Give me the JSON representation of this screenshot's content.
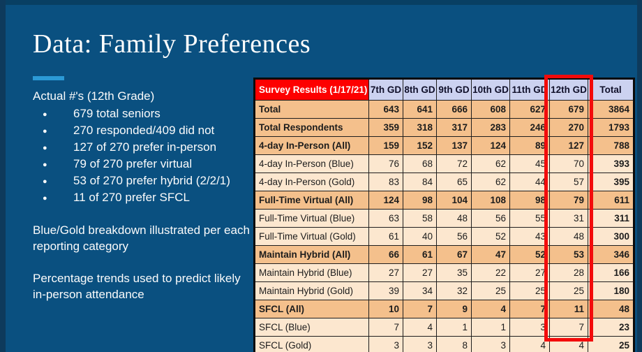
{
  "slide": {
    "title": "Data: Family Preferences",
    "background_color": "#0a5080",
    "accent_color": "#2b9ad6"
  },
  "left_panel": {
    "heading": "Actual #'s (12th Grade)",
    "bullets": [
      "679 total seniors",
      "270 responded/409 did not",
      "127 of 270 prefer in-person",
      "79 of 270 prefer virtual",
      "53 of 270 prefer hybrid (2/2/1)",
      "11 of 270 prefer SFCL"
    ],
    "paragraphs": [
      "Blue/Gold breakdown illustrated per each reporting category",
      "Percentage trends used to predict likely in-person attendance"
    ]
  },
  "table": {
    "title_cell": "Survey Results (1/17/21)",
    "columns": [
      "7th GD",
      "8th GD",
      "9th GD",
      "10th GD",
      "11th GD",
      "12th GD",
      "Total"
    ],
    "highlighted_column": "12th GD",
    "header_bg": "#ccd2f0",
    "title_bg": "#fd0000",
    "emphasis_row_bg": "#f4c08c",
    "row_bg": "#fce7cf",
    "highlight_border": "#f30b0b",
    "rows": [
      {
        "label": "Total",
        "values": [
          643,
          641,
          666,
          608,
          627,
          679,
          3864
        ],
        "bold": true
      },
      {
        "label": "Total Respondents",
        "values": [
          359,
          318,
          317,
          283,
          246,
          270,
          1793
        ],
        "bold": true
      },
      {
        "label": "4-day In-Person (All)",
        "values": [
          159,
          152,
          137,
          124,
          89,
          127,
          788
        ],
        "bold": true
      },
      {
        "label": "4-day In-Person (Blue)",
        "values": [
          76,
          68,
          72,
          62,
          45,
          70,
          393
        ],
        "bold": false
      },
      {
        "label": "4-day In-Person (Gold)",
        "values": [
          83,
          84,
          65,
          62,
          44,
          57,
          395
        ],
        "bold": false
      },
      {
        "label": "Full-Time Virtual (All)",
        "values": [
          124,
          98,
          104,
          108,
          98,
          79,
          611
        ],
        "bold": true
      },
      {
        "label": "Full-Time Virtual (Blue)",
        "values": [
          63,
          58,
          48,
          56,
          55,
          31,
          311
        ],
        "bold": false
      },
      {
        "label": "Full-Time Virtual (Gold)",
        "values": [
          61,
          40,
          56,
          52,
          43,
          48,
          300
        ],
        "bold": false
      },
      {
        "label": "Maintain Hybrid (All)",
        "values": [
          66,
          61,
          67,
          47,
          52,
          53,
          346
        ],
        "bold": true
      },
      {
        "label": "Maintain Hybrid (Blue)",
        "values": [
          27,
          27,
          35,
          22,
          27,
          28,
          166
        ],
        "bold": false
      },
      {
        "label": "Maintain Hybrid (Gold)",
        "values": [
          39,
          34,
          32,
          25,
          25,
          25,
          180
        ],
        "bold": false
      },
      {
        "label": "SFCL (All)",
        "values": [
          10,
          7,
          9,
          4,
          7,
          11,
          48
        ],
        "bold": true
      },
      {
        "label": "SFCL (Blue)",
        "values": [
          7,
          4,
          1,
          1,
          3,
          7,
          23
        ],
        "bold": false
      },
      {
        "label": "SFCL (Gold)",
        "values": [
          3,
          3,
          8,
          3,
          4,
          4,
          25
        ],
        "bold": false
      }
    ]
  },
  "chart_data": {
    "type": "table",
    "title": "Survey Results (1/17/21)",
    "columns": [
      "7th GD",
      "8th GD",
      "9th GD",
      "10th GD",
      "11th GD",
      "12th GD",
      "Total"
    ],
    "rows": [
      [
        "Total",
        643,
        641,
        666,
        608,
        627,
        679,
        3864
      ],
      [
        "Total Respondents",
        359,
        318,
        317,
        283,
        246,
        270,
        1793
      ],
      [
        "4-day In-Person (All)",
        159,
        152,
        137,
        124,
        89,
        127,
        788
      ],
      [
        "4-day In-Person (Blue)",
        76,
        68,
        72,
        62,
        45,
        70,
        393
      ],
      [
        "4-day In-Person (Gold)",
        83,
        84,
        65,
        62,
        44,
        57,
        395
      ],
      [
        "Full-Time Virtual (All)",
        124,
        98,
        104,
        108,
        98,
        79,
        611
      ],
      [
        "Full-Time Virtual (Blue)",
        63,
        58,
        48,
        56,
        55,
        31,
        311
      ],
      [
        "Full-Time Virtual (Gold)",
        61,
        40,
        56,
        52,
        43,
        48,
        300
      ],
      [
        "Maintain Hybrid (All)",
        66,
        61,
        67,
        47,
        52,
        53,
        346
      ],
      [
        "Maintain Hybrid (Blue)",
        27,
        27,
        35,
        22,
        27,
        28,
        166
      ],
      [
        "Maintain Hybrid (Gold)",
        39,
        34,
        32,
        25,
        25,
        25,
        180
      ],
      [
        "SFCL (All)",
        10,
        7,
        9,
        4,
        7,
        11,
        48
      ],
      [
        "SFCL (Blue)",
        7,
        4,
        1,
        1,
        3,
        7,
        23
      ],
      [
        "SFCL (Gold)",
        3,
        3,
        8,
        3,
        4,
        4,
        25
      ]
    ],
    "annotation": "12th GD column outlined in red"
  }
}
